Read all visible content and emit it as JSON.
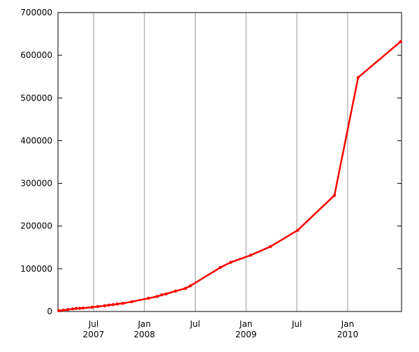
{
  "chart_data": {
    "type": "line",
    "x": [
      2007.158,
      2007.205,
      2007.247,
      2007.295,
      2007.329,
      2007.363,
      2007.397,
      2007.486,
      2007.541,
      2007.61,
      2007.651,
      2007.692,
      2007.733,
      2007.788,
      2007.877,
      2008.041,
      2008.123,
      2008.171,
      2008.212,
      2008.308,
      2008.404,
      2008.452,
      2008.747,
      2008.849,
      2009.048,
      2009.24,
      2009.507,
      2009.87,
      2010.103,
      2010.521
    ],
    "series": [
      {
        "color": "#ff0000",
        "values": [
          2000,
          3000,
          4500,
          6000,
          7000,
          7500,
          8000,
          10000,
          11500,
          13500,
          15000,
          16000,
          17500,
          19000,
          23000,
          31000,
          35000,
          39000,
          41000,
          48000,
          54000,
          60000,
          103000,
          115000,
          132000,
          152000,
          190000,
          272000,
          548000,
          632000
        ]
      }
    ],
    "xlim": [
      2007.15,
      2010.53
    ],
    "xticks": [
      {
        "value": 2007.5,
        "label": "Jul 2007"
      },
      {
        "value": 2008.0,
        "label": "Jan 2008"
      },
      {
        "value": 2008.5,
        "label": "Jul"
      },
      {
        "value": 2009.0,
        "label": "Jan 2009"
      },
      {
        "value": 2009.5,
        "label": "Jul"
      },
      {
        "value": 2010.0,
        "label": "Jan 2010"
      }
    ],
    "ylim": [
      0,
      700000
    ],
    "yticks": [
      0,
      100000,
      200000,
      300000,
      400000,
      500000,
      600000,
      700000
    ],
    "grid": true
  }
}
